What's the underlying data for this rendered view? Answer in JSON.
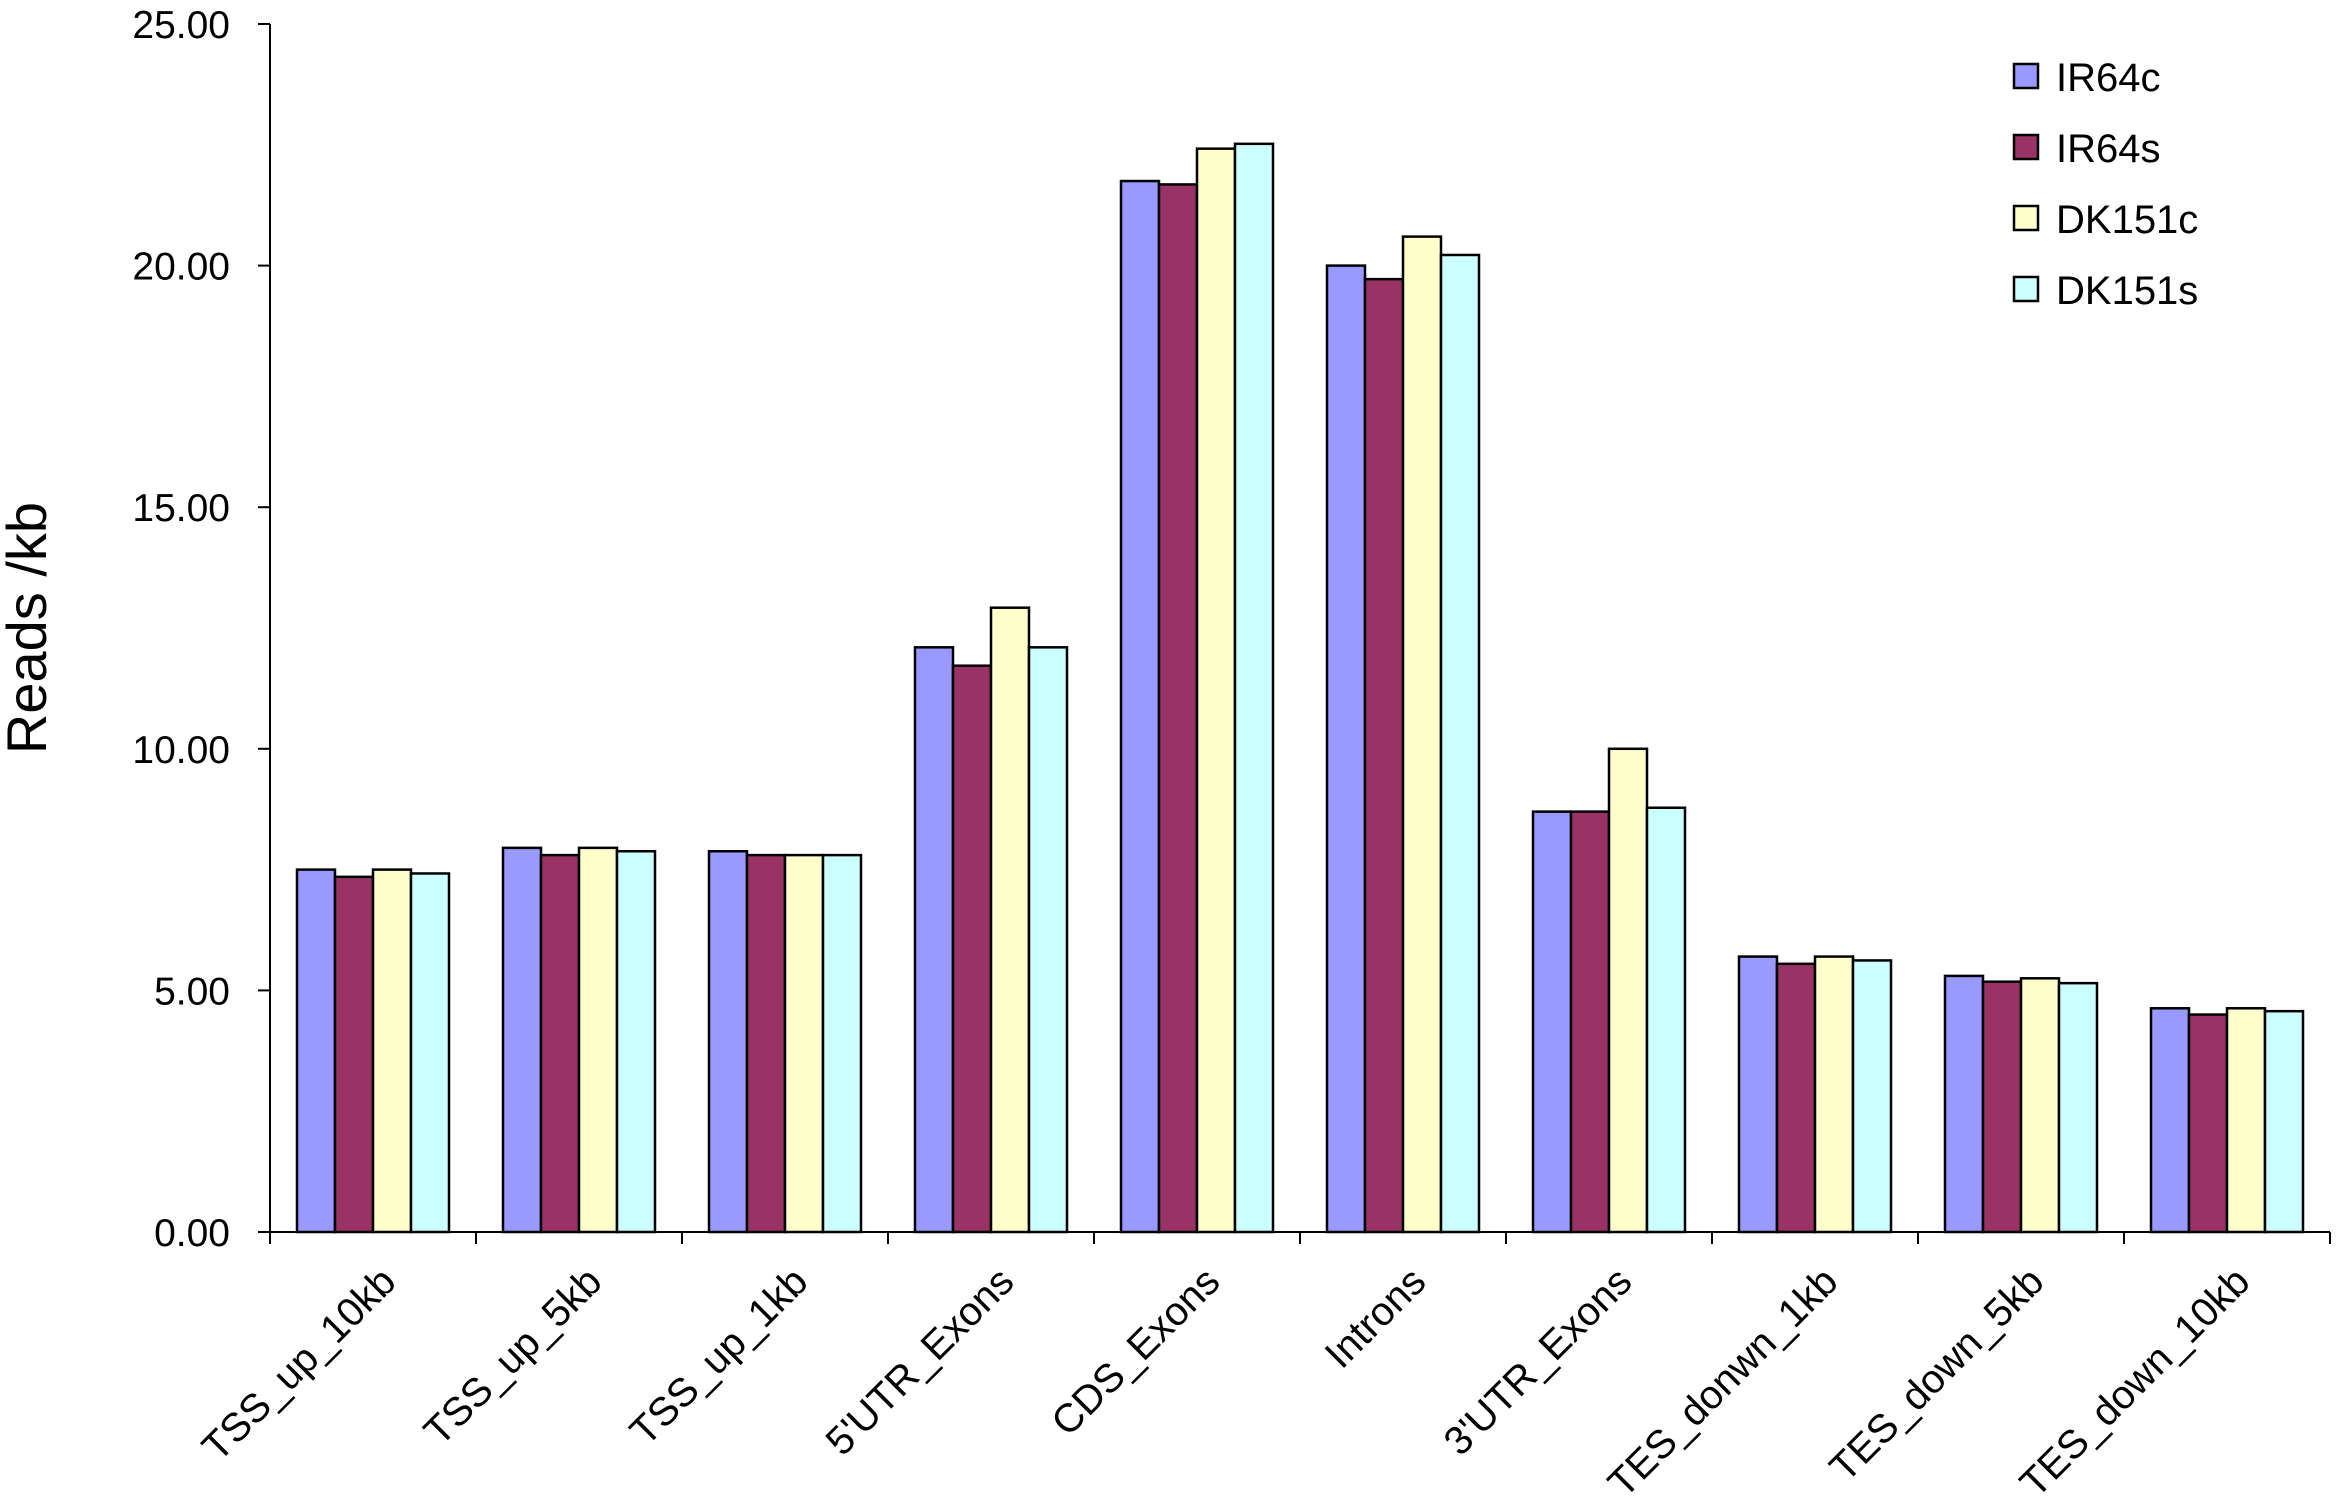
{
  "chart_data": {
    "type": "bar",
    "ylabel": "Reads /kb",
    "xlabel": "",
    "title": "",
    "ylim": [
      0,
      25
    ],
    "yticks": [
      "0.00",
      "5.00",
      "10.00",
      "15.00",
      "20.00",
      "25.00"
    ],
    "grid": false,
    "legend_position": "top-right",
    "categories": [
      "TSS_up_10kb",
      "TSS_up_5kb",
      "TSS_up_1kb",
      "5'UTR_Exons",
      "CDS_Exons",
      "Introns",
      "3'UTR_Exons",
      "TES_donwn_1kb",
      "TES_down_5kb",
      "TES_down_10kb"
    ],
    "series": [
      {
        "name": "IR64c",
        "color": "#9999ff",
        "values": [
          7.5,
          7.95,
          7.88,
          12.1,
          21.75,
          20.0,
          8.7,
          5.7,
          5.3,
          4.63
        ]
      },
      {
        "name": "IR64s",
        "color": "#993366",
        "values": [
          7.35,
          7.8,
          7.8,
          11.72,
          21.68,
          19.72,
          8.7,
          5.55,
          5.18,
          4.5
        ]
      },
      {
        "name": "DK151c",
        "color": "#ffffcc",
        "values": [
          7.5,
          7.95,
          7.8,
          12.92,
          22.42,
          20.6,
          10.0,
          5.7,
          5.25,
          4.63
        ]
      },
      {
        "name": "DK151s",
        "color": "#ccffff",
        "values": [
          7.42,
          7.88,
          7.8,
          12.1,
          22.52,
          20.22,
          8.78,
          5.62,
          5.15,
          4.57
        ]
      }
    ]
  }
}
